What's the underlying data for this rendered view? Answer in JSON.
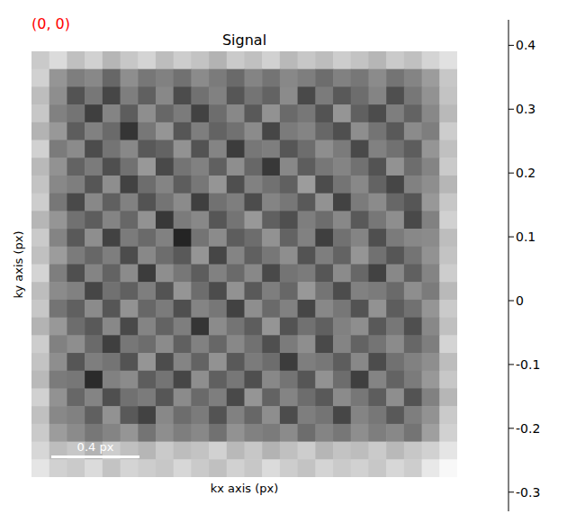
{
  "chart_data": {
    "type": "heatmap",
    "title": "Signal",
    "x_label": "kx axis (px)",
    "y_label": "ky axis (px)",
    "tick_labels": false,
    "annotations": [
      {
        "text": "(0, 0)",
        "color": "red"
      },
      {
        "text": "0.4 px",
        "color": "white"
      }
    ],
    "colorbar": {
      "range": [
        -0.33,
        0.44
      ],
      "ticks": [
        -0.3,
        -0.2,
        -0.1,
        0,
        0.1,
        0.2,
        0.3,
        0.4
      ]
    },
    "cells": [
      [
        0.28,
        0.33,
        0.25,
        0.3,
        0.22,
        0.27,
        0.31,
        0.24,
        0.29,
        0.26,
        0.21,
        0.28,
        0.25,
        0.3,
        0.23,
        0.27,
        0.24,
        0.29,
        0.26,
        0.22,
        0.28,
        0.25,
        0.31,
        0.35
      ],
      [
        0.3,
        0.12,
        0.05,
        0.08,
        -0.02,
        0.1,
        0.03,
        0.06,
        0.01,
        0.09,
        0.04,
        -0.01,
        0.07,
        0.02,
        0.08,
        0.05,
        0.0,
        0.06,
        0.03,
        0.09,
        0.02,
        0.07,
        0.14,
        0.27
      ],
      [
        0.24,
        0.1,
        -0.08,
        0.03,
        -0.12,
        0.05,
        -0.04,
        0.08,
        -0.1,
        0.01,
        0.06,
        -0.07,
        0.02,
        -0.03,
        0.09,
        -0.11,
        0.04,
        -0.06,
        0.0,
        0.07,
        -0.09,
        0.03,
        0.11,
        0.26
      ],
      [
        0.27,
        0.06,
        0.02,
        -0.14,
        0.07,
        -0.05,
        0.1,
        -0.02,
        0.04,
        -0.13,
        0.0,
        0.08,
        -0.06,
        0.11,
        -0.01,
        0.03,
        -0.08,
        0.12,
        -0.04,
        -0.1,
        0.05,
        -0.03,
        0.08,
        0.23
      ],
      [
        0.21,
        0.13,
        -0.05,
        0.06,
        -0.01,
        -0.17,
        0.03,
        0.12,
        -0.07,
        0.05,
        -0.03,
        0.01,
        0.09,
        -0.12,
        0.04,
        0.07,
        -0.02,
        -0.09,
        0.1,
        0.02,
        -0.06,
        0.09,
        0.05,
        0.29
      ],
      [
        0.3,
        0.04,
        0.09,
        -0.1,
        0.02,
        0.08,
        -0.06,
        -0.03,
        0.11,
        -0.08,
        0.07,
        -0.15,
        0.03,
        0.05,
        -0.07,
        0.0,
        0.1,
        0.04,
        -0.11,
        0.06,
        0.01,
        -0.05,
        0.12,
        0.25
      ],
      [
        0.23,
        0.11,
        -0.03,
        0.04,
        -0.09,
        0.01,
        0.13,
        -0.11,
        0.02,
        0.06,
        -0.04,
        0.1,
        -0.02,
        -0.16,
        0.08,
        -0.05,
        0.03,
        0.07,
        0.01,
        -0.08,
        0.11,
        0.0,
        0.07,
        0.28
      ],
      [
        0.26,
        0.08,
        0.05,
        -0.07,
        0.1,
        -0.13,
        0.0,
        0.07,
        -0.05,
        0.03,
        0.12,
        -0.09,
        0.06,
        0.01,
        -0.04,
        0.14,
        -0.1,
        0.02,
        0.08,
        -0.03,
        -0.12,
        0.06,
        0.1,
        0.22
      ],
      [
        0.29,
        0.03,
        -0.11,
        0.08,
        -0.04,
        0.06,
        -0.08,
        0.02,
        0.09,
        -0.14,
        0.01,
        0.05,
        -0.1,
        0.07,
        0.03,
        -0.06,
        0.11,
        -0.13,
        0.04,
        0.09,
        -0.02,
        -0.07,
        0.13,
        0.27
      ],
      [
        0.22,
        0.12,
        0.01,
        -0.05,
        0.07,
        -0.02,
        0.11,
        -0.16,
        0.04,
        0.08,
        -0.07,
        0.02,
        0.13,
        -0.04,
        -0.09,
        0.05,
        0.0,
        0.08,
        -0.06,
        0.03,
        0.1,
        -0.11,
        0.06,
        0.3
      ],
      [
        0.28,
        0.07,
        -0.06,
        0.1,
        -0.13,
        0.04,
        -0.01,
        0.06,
        -0.22,
        0.02,
        0.09,
        -0.05,
        0.0,
        0.11,
        -0.03,
        0.06,
        -0.14,
        0.01,
        0.07,
        -0.09,
        0.04,
        0.08,
        0.09,
        0.24
      ],
      [
        0.25,
        0.14,
        0.04,
        -0.02,
        0.05,
        -0.1,
        0.08,
        0.0,
        -0.06,
        0.12,
        -0.12,
        0.07,
        -0.04,
        0.03,
        0.1,
        -0.08,
        0.05,
        -0.03,
        0.12,
        0.01,
        -0.07,
        0.02,
        0.11,
        0.26
      ],
      [
        0.31,
        0.05,
        -0.09,
        0.07,
        -0.03,
        0.09,
        -0.15,
        0.1,
        0.03,
        -0.05,
        0.06,
        -0.01,
        0.08,
        -0.11,
        0.02,
        0.04,
        -0.07,
        0.09,
        -0.02,
        -0.13,
        0.08,
        -0.04,
        0.07,
        0.29
      ],
      [
        0.24,
        0.09,
        0.06,
        -0.12,
        0.01,
        -0.04,
        0.05,
        -0.08,
        0.12,
        0.0,
        -0.1,
        0.11,
        -0.06,
        0.05,
        -0.02,
        0.13,
        0.02,
        -0.1,
        0.06,
        0.04,
        -0.01,
        0.1,
        0.04,
        0.23
      ],
      [
        0.27,
        0.02,
        -0.04,
        0.09,
        -0.07,
        0.11,
        -0.02,
        0.04,
        -0.09,
        0.07,
        0.03,
        -0.13,
        0.1,
        -0.01,
        0.06,
        -0.12,
        0.08,
        0.03,
        -0.08,
        0.11,
        -0.05,
        0.01,
        0.12,
        0.28
      ],
      [
        0.21,
        0.13,
        0.0,
        -0.06,
        0.08,
        -0.11,
        0.07,
        -0.03,
        0.05,
        -0.17,
        0.09,
        0.02,
        -0.05,
        0.12,
        -0.08,
        0.01,
        -0.04,
        0.06,
        0.1,
        -0.06,
        0.03,
        -0.09,
        0.08,
        0.25
      ],
      [
        0.29,
        0.06,
        0.1,
        -0.01,
        -0.14,
        0.03,
        0.0,
        0.09,
        -0.04,
        0.06,
        -0.02,
        0.08,
        0.01,
        -0.09,
        0.04,
        0.1,
        -0.11,
        0.07,
        -0.03,
        0.02,
        0.09,
        -0.02,
        0.05,
        0.31
      ],
      [
        0.26,
        0.1,
        -0.07,
        0.05,
        0.02,
        -0.08,
        0.12,
        -0.1,
        0.07,
        -0.03,
        0.11,
        -0.06,
        0.04,
        0.0,
        -0.15,
        0.05,
        0.03,
        -0.05,
        0.08,
        -0.1,
        0.01,
        0.06,
        0.1,
        0.24
      ],
      [
        0.23,
        0.04,
        0.03,
        -0.2,
        0.06,
        0.09,
        -0.05,
        0.02,
        -0.12,
        0.1,
        -0.04,
        0.03,
        -0.09,
        0.08,
        0.02,
        -0.07,
        0.11,
        0.0,
        -0.14,
        0.07,
        -0.03,
        0.04,
        0.13,
        0.27
      ],
      [
        0.3,
        0.11,
        -0.02,
        0.07,
        -0.09,
        0.01,
        0.04,
        -0.07,
        0.09,
        -0.01,
        0.05,
        -0.11,
        0.12,
        -0.03,
        0.07,
        0.0,
        -0.06,
        0.09,
        0.03,
        -0.05,
        0.1,
        -0.08,
        0.06,
        0.22
      ],
      [
        0.25,
        0.08,
        0.06,
        -0.04,
        0.11,
        -0.06,
        -0.13,
        0.08,
        0.0,
        0.04,
        -0.08,
        0.06,
        -0.02,
        0.1,
        -0.1,
        0.05,
        0.02,
        -0.12,
        0.07,
        0.03,
        -0.06,
        0.05,
        0.11,
        0.28
      ],
      [
        0.28,
        0.14,
        0.09,
        0.03,
        0.07,
        0.12,
        0.02,
        0.1,
        0.05,
        0.08,
        0.01,
        0.11,
        0.06,
        0.04,
        0.09,
        0.0,
        0.07,
        0.03,
        0.1,
        0.05,
        0.08,
        0.02,
        0.15,
        0.3
      ],
      [
        0.32,
        0.24,
        0.27,
        0.21,
        0.29,
        0.25,
        0.22,
        0.28,
        0.24,
        0.26,
        0.3,
        0.23,
        0.27,
        0.21,
        0.25,
        0.29,
        0.22,
        0.26,
        0.24,
        0.28,
        0.23,
        0.27,
        0.3,
        0.36
      ],
      [
        0.36,
        0.3,
        0.28,
        0.33,
        0.26,
        0.31,
        0.29,
        0.27,
        0.32,
        0.28,
        0.25,
        0.3,
        0.27,
        0.33,
        0.29,
        0.26,
        0.31,
        0.28,
        0.3,
        0.27,
        0.32,
        0.29,
        0.37,
        0.42
      ]
    ]
  }
}
